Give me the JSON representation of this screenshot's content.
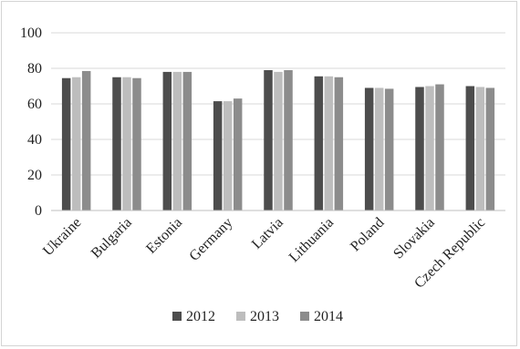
{
  "chart_data": {
    "type": "bar",
    "title": "",
    "xlabel": "",
    "ylabel": "",
    "ylim": [
      0,
      100
    ],
    "yticks": [
      0,
      20,
      40,
      60,
      80,
      100
    ],
    "grid": "horizontal",
    "legend_position": "bottom",
    "categories": [
      "Ukraine",
      "Bulgaria",
      "Estonia",
      "Germany",
      "Latvia",
      "Lithuania",
      "Poland",
      "Slovakia",
      "Czech Republic"
    ],
    "series": [
      {
        "name": "2012",
        "color": "#4d4d4d",
        "values": [
          74.5,
          75,
          78,
          61.5,
          79,
          75.5,
          69,
          69.5,
          70
        ]
      },
      {
        "name": "2013",
        "color": "#bdbdbd",
        "values": [
          75,
          75,
          78,
          61.5,
          78,
          75.5,
          69,
          70,
          69.5
        ]
      },
      {
        "name": "2014",
        "color": "#8c8c8c",
        "values": [
          78.5,
          74.5,
          78,
          63,
          79,
          75,
          68.5,
          71,
          69
        ]
      }
    ]
  }
}
